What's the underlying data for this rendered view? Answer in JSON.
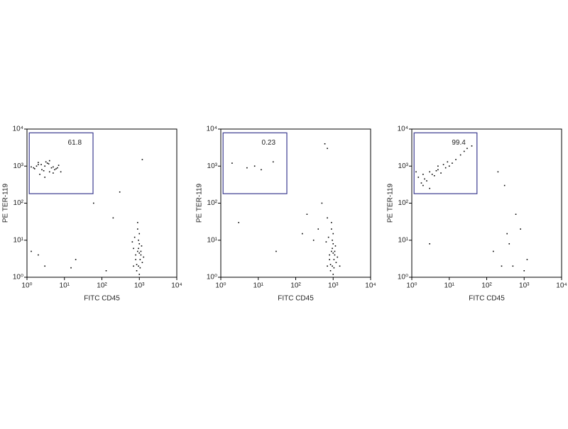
{
  "chart_data": [
    {
      "type": "scatter",
      "x_label": "FITC CD45",
      "y_label": "PE TER-119",
      "log_x": true,
      "log_y": true,
      "color": "#000000",
      "xlim": [
        1,
        10000
      ],
      "ylim": [
        1,
        10000
      ],
      "xticks": [
        {
          "value": 1,
          "label": "10⁰"
        },
        {
          "value": 10,
          "label": "10¹"
        },
        {
          "value": 100,
          "label": "10²"
        },
        {
          "value": 1000,
          "label": "10³"
        },
        {
          "value": 10000,
          "label": "10⁴"
        }
      ],
      "yticks": [
        {
          "value": 1,
          "label": "10⁰"
        },
        {
          "value": 10,
          "label": "10¹"
        },
        {
          "value": 100,
          "label": "10²"
        },
        {
          "value": 1000,
          "label": "10³"
        },
        {
          "value": 10000,
          "label": "10⁴"
        }
      ],
      "gate": {
        "x": [
          1.15,
          58
        ],
        "y": [
          180,
          7900
        ],
        "label": "61.8",
        "color": "#3a3a8f"
      },
      "x": [
        1.5,
        2,
        2.5,
        3,
        3.5,
        4,
        5,
        6,
        7,
        2.2,
        3.2,
        4.5,
        1.8,
        2.8,
        3.8,
        5.5,
        1.3,
        2.4,
        6.5,
        8,
        3,
        4,
        2,
        5,
        1.6,
        700,
        800,
        900,
        1000,
        1100,
        1200,
        850,
        950,
        1050,
        750,
        900,
        1000,
        1150,
        800,
        950,
        1300,
        650,
        1000,
        900,
        1100,
        850,
        1050,
        950,
        1000,
        700,
        1.3,
        3,
        20,
        60,
        200,
        130,
        1200,
        300,
        2,
        15
      ],
      "y": [
        900,
        1100,
        800,
        1000,
        1200,
        700,
        950,
        850,
        1050,
        600,
        1300,
        900,
        1000,
        750,
        1150,
        800,
        950,
        1100,
        900,
        700,
        500,
        1400,
        1250,
        650,
        850,
        2,
        3,
        5,
        8,
        4,
        2.5,
        1.5,
        6,
        3,
        12,
        20,
        1.2,
        7,
        4,
        2,
        3.5,
        9,
        15,
        30,
        5,
        2.2,
        1.8,
        10,
        4.5,
        6,
        5,
        2,
        3,
        100,
        40,
        1.5,
        1500,
        200,
        4,
        1.8
      ]
    },
    {
      "type": "scatter",
      "x_label": "FITC CD45",
      "y_label": "PE TER-119",
      "log_x": true,
      "log_y": true,
      "color": "#000000",
      "xlim": [
        1,
        10000
      ],
      "ylim": [
        1,
        10000
      ],
      "xticks": [
        {
          "value": 1,
          "label": "10⁰"
        },
        {
          "value": 10,
          "label": "10¹"
        },
        {
          "value": 100,
          "label": "10²"
        },
        {
          "value": 1000,
          "label": "10³"
        },
        {
          "value": 10000,
          "label": "10⁴"
        }
      ],
      "yticks": [
        {
          "value": 1,
          "label": "10⁰"
        },
        {
          "value": 10,
          "label": "10¹"
        },
        {
          "value": 100,
          "label": "10²"
        },
        {
          "value": 1000,
          "label": "10³"
        },
        {
          "value": 10000,
          "label": "10⁴"
        }
      ],
      "gate": {
        "x": [
          1.15,
          58
        ],
        "y": [
          180,
          7900
        ],
        "label": "0.23",
        "color": "#3a3a8f"
      },
      "x": [
        2,
        5,
        8,
        12,
        25,
        700,
        800,
        900,
        1000,
        1100,
        1200,
        850,
        950,
        1050,
        750,
        900,
        1000,
        1150,
        800,
        950,
        1300,
        650,
        1000,
        900,
        1100,
        850,
        1050,
        950,
        1000,
        700,
        3,
        30,
        200,
        400,
        600,
        700,
        300,
        500,
        150,
        1500
      ],
      "y": [
        1200,
        900,
        1000,
        800,
        1300,
        2,
        3,
        5,
        8,
        4,
        2.5,
        1.5,
        6,
        3,
        12,
        20,
        1.2,
        7,
        4,
        2,
        3.5,
        9,
        15,
        30,
        5,
        2.2,
        1.8,
        10,
        4.5,
        40,
        30,
        5,
        50,
        20,
        4000,
        3000,
        10,
        100,
        15,
        2
      ]
    },
    {
      "type": "scatter",
      "x_label": "FITC CD45",
      "y_label": "PE TER-119",
      "log_x": true,
      "log_y": true,
      "color": "#000000",
      "xlim": [
        1,
        10000
      ],
      "ylim": [
        1,
        10000
      ],
      "xticks": [
        {
          "value": 1,
          "label": "10⁰"
        },
        {
          "value": 10,
          "label": "10¹"
        },
        {
          "value": 100,
          "label": "10²"
        },
        {
          "value": 1000,
          "label": "10³"
        },
        {
          "value": 10000,
          "label": "10⁴"
        }
      ],
      "yticks": [
        {
          "value": 1,
          "label": "10⁰"
        },
        {
          "value": 10,
          "label": "10¹"
        },
        {
          "value": 100,
          "label": "10²"
        },
        {
          "value": 1000,
          "label": "10³"
        },
        {
          "value": 10000,
          "label": "10⁴"
        }
      ],
      "gate": {
        "x": [
          1.15,
          55
        ],
        "y": [
          180,
          7900
        ],
        "label": "99.4",
        "color": "#3a3a8f"
      },
      "x": [
        1.5,
        2,
        2.5,
        3,
        4,
        5,
        6,
        8,
        10,
        12,
        15,
        20,
        25,
        30,
        1.8,
        2.2,
        3.5,
        4.5,
        7,
        9,
        2,
        3,
        5,
        1.3,
        40,
        200,
        300,
        350,
        400,
        250,
        600,
        800,
        1000,
        1200,
        3,
        500,
        150
      ],
      "y": [
        500,
        600,
        400,
        700,
        550,
        800,
        650,
        900,
        1000,
        1200,
        1500,
        2000,
        2500,
        3000,
        350,
        450,
        600,
        750,
        1100,
        1300,
        300,
        250,
        1000,
        700,
        3500,
        700,
        300,
        15,
        8,
        2,
        50,
        20,
        1.5,
        3,
        8,
        2,
        5
      ]
    }
  ]
}
